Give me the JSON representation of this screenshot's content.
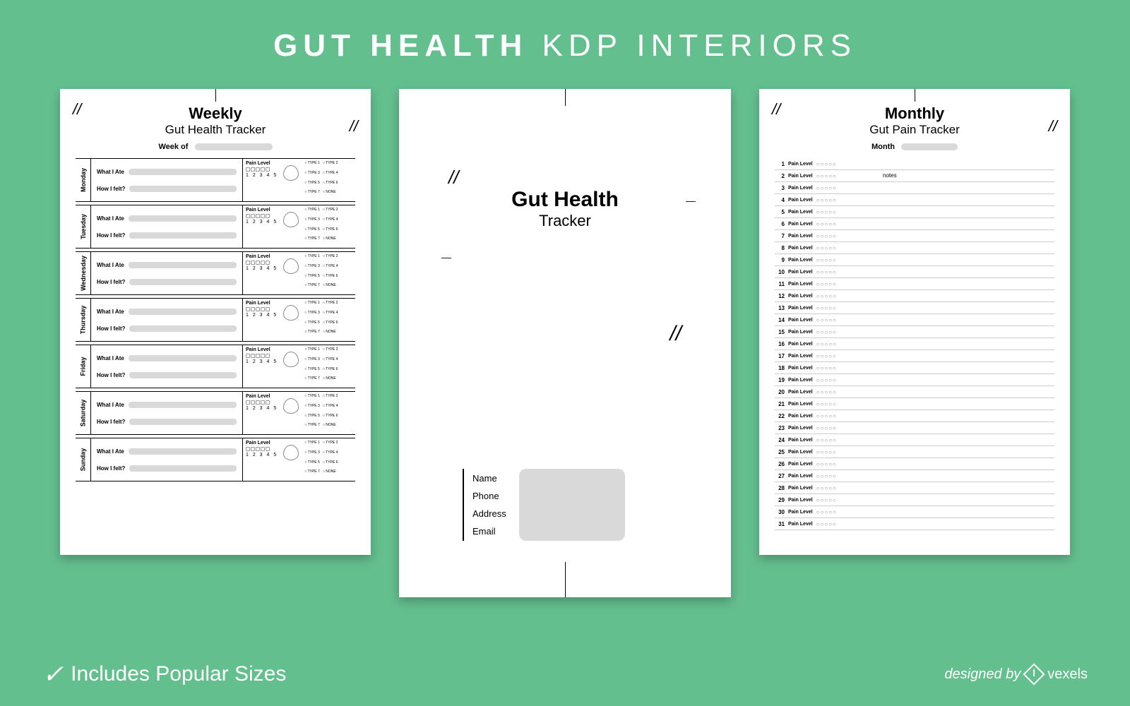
{
  "banner": {
    "bold": "GUT HEALTH",
    "rest": " KDP INTERIORS",
    "bg_color": "#64bf8f"
  },
  "footer": {
    "includes": "Includes",
    "popular_sizes": " Popular Sizes",
    "designed_by": "designed by",
    "brand": "vexels"
  },
  "weekly": {
    "title_bold": "Weekly",
    "title_rest": "Gut Health Tracker",
    "week_of": "Week of",
    "what_ate": "What I Ate",
    "how_felt": "How I felt?",
    "pain_level": "Pain Level",
    "nums": "1 2 3 4 5",
    "types": [
      "TYPE 1",
      "TYPE 2",
      "TYPE 3",
      "TYPE 4",
      "TYPE 5",
      "TYPE 6",
      "TYPE 7",
      "NONE"
    ],
    "days": [
      "Monday",
      "Tuesday",
      "Wednesday",
      "Thursday",
      "Friday",
      "Saturday",
      "Sunday"
    ]
  },
  "cover": {
    "title_bold": "Gut Health",
    "title_rest": "Tracker",
    "fields": [
      "Name",
      "Phone",
      "Address",
      "Email"
    ]
  },
  "monthly": {
    "title_bold": "Monthly",
    "title_rest": "Gut Pain Tracker",
    "month": "Month",
    "pain_level": "Pain Level",
    "ooo": "○○○○○",
    "notes": "notes",
    "day_count": 31
  },
  "styling": {
    "page_bg": "#ffffff",
    "shadow": "rgba(0,0,0,0.25)",
    "gray_fill": "#d9d9d9",
    "line_color": "#000000"
  }
}
